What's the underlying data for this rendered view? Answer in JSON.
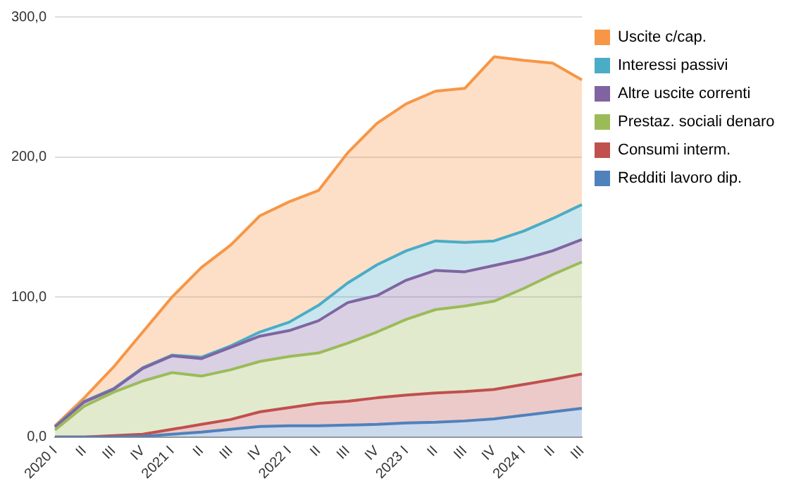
{
  "chart_data": {
    "type": "area",
    "stacked": true,
    "categories": [
      "2020 I",
      "II",
      "III",
      "IV",
      "2021 I",
      "II",
      "III",
      "IV",
      "2022 I",
      "II",
      "III",
      "IV",
      "2023 I",
      "II",
      "III",
      "IV",
      "2024 I",
      "II",
      "III"
    ],
    "series": [
      {
        "name": "Redditi lavoro dip.",
        "color": "#4f81bd",
        "values": [
          0,
          0,
          0,
          0.5,
          2,
          3.5,
          5.5,
          7.5,
          8,
          8,
          8.5,
          9,
          10,
          10.5,
          11.5,
          13,
          15.5,
          18,
          20.5
        ]
      },
      {
        "name": "Consumi interm.",
        "color": "#c0504d",
        "values": [
          0,
          0,
          1,
          1.5,
          3.5,
          5.5,
          7,
          10.5,
          13,
          16,
          17,
          19,
          20,
          21,
          21,
          21,
          22,
          23,
          24.5
        ]
      },
      {
        "name": "Prestaz. sociali denaro",
        "color": "#9bbb59",
        "values": [
          5,
          22,
          31,
          38,
          40.5,
          34.5,
          35.5,
          36,
          36.5,
          36,
          41.5,
          47,
          54,
          59.5,
          61,
          63,
          68.5,
          75,
          80
        ]
      },
      {
        "name": "Altre uscite correnti",
        "color": "#8064a2",
        "values": [
          2,
          3,
          2,
          9,
          12,
          12.5,
          16,
          18,
          18.5,
          23,
          29,
          26,
          28,
          28,
          24.5,
          25.5,
          21,
          17,
          16
        ]
      },
      {
        "name": "Interessi passivi",
        "color": "#4bacc6",
        "values": [
          0.5,
          0.5,
          0.5,
          0.5,
          0.5,
          1,
          1,
          3,
          6,
          11,
          14,
          22,
          21,
          21,
          21,
          17.5,
          20,
          23,
          25
        ]
      },
      {
        "name": "Uscite c/cap.",
        "color": "#f79646",
        "values": [
          0.5,
          2.5,
          15.5,
          25.5,
          41.5,
          64,
          72,
          83,
          86,
          82,
          93,
          101,
          105,
          107,
          110,
          131.5,
          122,
          111,
          89
        ]
      }
    ],
    "ylim": [
      0,
      300
    ],
    "yticks": [
      {
        "value": 0,
        "label": "0,0"
      },
      {
        "value": 100,
        "label": "100,0"
      },
      {
        "value": 200,
        "label": "200,0"
      },
      {
        "value": 300,
        "label": "300,0"
      }
    ],
    "grid": "y",
    "legend": "right",
    "marker": "none",
    "line_style": "solid"
  }
}
